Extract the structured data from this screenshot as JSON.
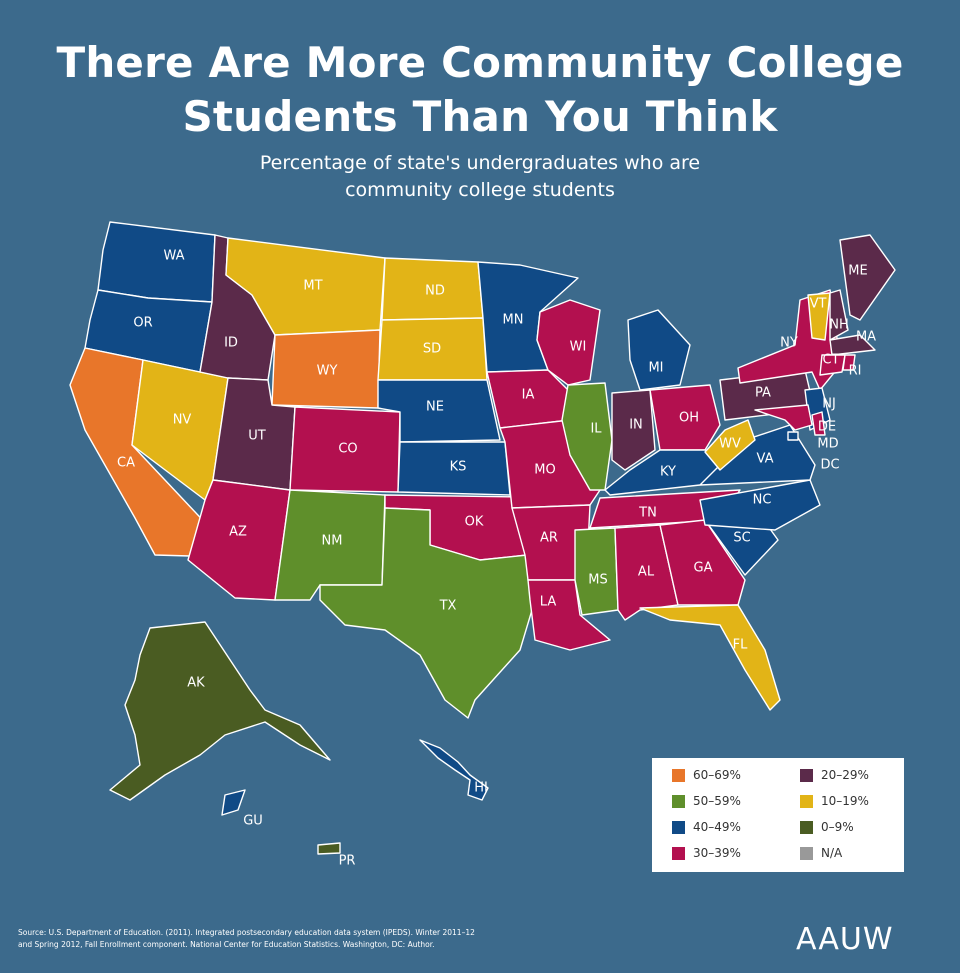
{
  "header": {
    "title_line1": "There Are More Community College",
    "title_line2": "Students Than You Think",
    "subtitle_line1": "Percentage of state's undergraduates who are",
    "subtitle_line2": "community college students"
  },
  "colors": {
    "ocean": "#3c6a8c",
    "60-69": "#e8762a",
    "50-59": "#5f8f2b",
    "40-49": "#104a86",
    "30-39": "#b3104f",
    "20-29": "#5b2a4a",
    "10-19": "#e2b417",
    "0-9": "#4a5c22",
    "na": "#999999"
  },
  "states": {
    "WA": "40-49",
    "OR": "40-49",
    "CA": "60-69",
    "NV": "10-19",
    "ID": "20-29",
    "MT": "10-19",
    "WY": "60-69",
    "UT": "20-29",
    "AZ": "30-39",
    "CO": "30-39",
    "NM": "50-59",
    "ND": "10-19",
    "SD": "10-19",
    "NE": "40-49",
    "KS": "40-49",
    "OK": "30-39",
    "TX": "50-59",
    "MN": "40-49",
    "IA": "30-39",
    "MO": "30-39",
    "AR": "30-39",
    "LA": "30-39",
    "WI": "30-39",
    "IL": "50-59",
    "MI": "40-49",
    "IN": "20-29",
    "OH": "30-39",
    "KY": "40-49",
    "TN": "30-39",
    "MS": "50-59",
    "AL": "30-39",
    "GA": "30-39",
    "FL": "10-19",
    "SC": "40-49",
    "NC": "40-49",
    "VA": "40-49",
    "WV": "10-19",
    "PA": "20-29",
    "NY": "30-39",
    "VT": "10-19",
    "NH": "20-29",
    "ME": "20-29",
    "MA": "20-29",
    "CT": "30-39",
    "RI": "30-39",
    "NJ": "40-49",
    "DE": "30-39",
    "MD": "30-39",
    "DC": "40-49",
    "AK": "0-9",
    "HI": "40-49",
    "GU": "40-49",
    "PR": "0-9"
  },
  "labels": [
    "WA",
    "OR",
    "CA",
    "NV",
    "ID",
    "MT",
    "WY",
    "UT",
    "AZ",
    "CO",
    "NM",
    "ND",
    "SD",
    "NE",
    "KS",
    "OK",
    "TX",
    "MN",
    "IA",
    "MO",
    "AR",
    "LA",
    "WI",
    "IL",
    "MI",
    "IN",
    "OH",
    "KY",
    "TN",
    "MS",
    "AL",
    "GA",
    "FL",
    "SC",
    "NC",
    "VA",
    "WV",
    "PA",
    "NY",
    "VT",
    "NH",
    "ME",
    "MA",
    "CT",
    "RI",
    "NJ",
    "DE",
    "MD",
    "DC",
    "AK",
    "HI",
    "GU",
    "PR"
  ],
  "legend": [
    {
      "key": "60-69",
      "label": "60–69%"
    },
    {
      "key": "20-29",
      "label": "20–29%"
    },
    {
      "key": "50-59",
      "label": "50–59%"
    },
    {
      "key": "10-19",
      "label": "10–19%"
    },
    {
      "key": "40-49",
      "label": "40–49%"
    },
    {
      "key": "0-9",
      "label": "0–9%"
    },
    {
      "key": "30-39",
      "label": "30–39%"
    },
    {
      "key": "na",
      "label": "N/A"
    }
  ],
  "footer": {
    "source_line1": "Source: U.S. Department of Education. (2011). Integrated postsecondary education data system (IPEDS). Winter 2011–12",
    "source_line2": "and Spring 2012, Fall Enrollment component. National Center for Education Statistics. Washington, DC: Author.",
    "logo": "AAUW"
  }
}
